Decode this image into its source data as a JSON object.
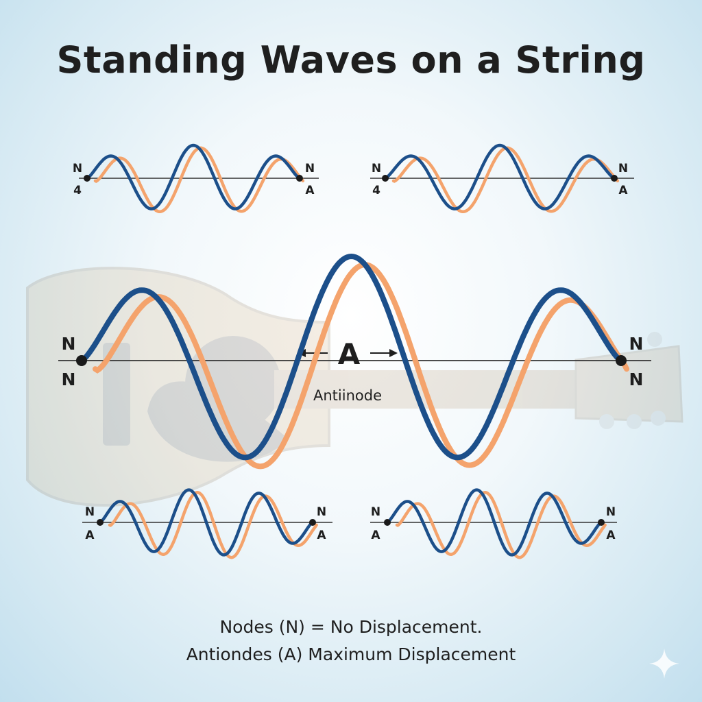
{
  "title": "Standing Waves on a String",
  "small_diagrams": [
    {
      "left_top": "N",
      "left_bottom": "4",
      "right_top": "N",
      "right_bottom": "A"
    },
    {
      "left_top": "N",
      "left_bottom": "4",
      "right_top": "N",
      "right_bottom": "A"
    },
    {
      "left_top": "N",
      "left_bottom": "A",
      "right_top": "N",
      "right_bottom": "A"
    },
    {
      "left_top": "N",
      "left_bottom": "A",
      "right_top": "N",
      "right_bottom": "A"
    }
  ],
  "main_diagram": {
    "left_top": "N",
    "left_bottom": "N",
    "right_top": "N",
    "right_bottom": "N",
    "antinode_symbol": "A",
    "antinode_label": "Antiinode"
  },
  "captions": {
    "line1": "Nodes (N) = No Displacement.",
    "line2": "Antiondes (A) Maximum Displacement"
  },
  "colors": {
    "wave_primary": "#1c4f8a",
    "wave_secondary": "#f4a36c",
    "string": "#333333",
    "node": "#1a1a1a"
  }
}
